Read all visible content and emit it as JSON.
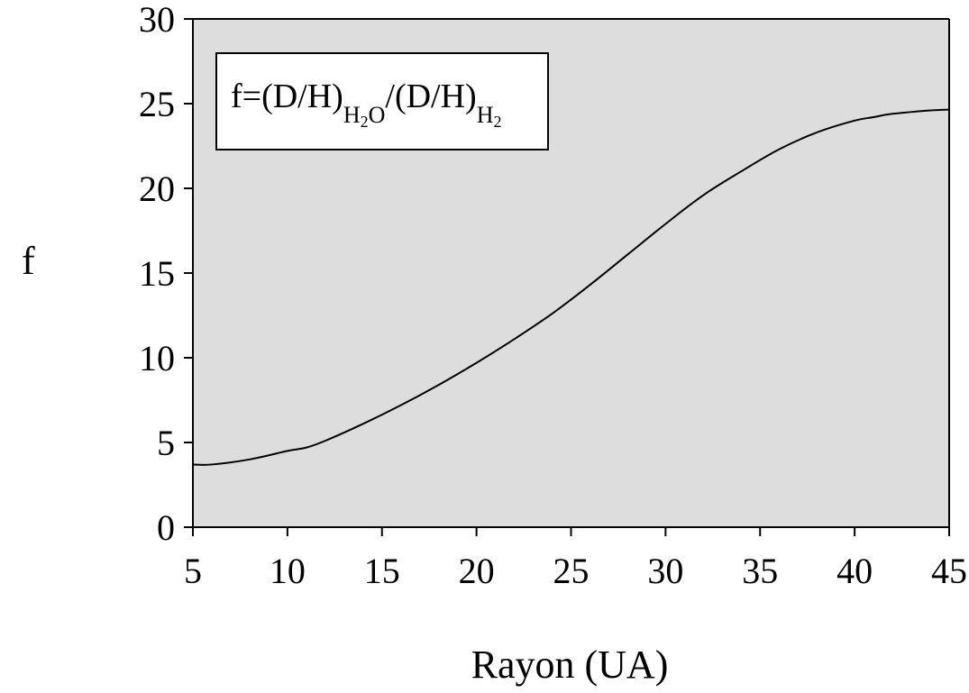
{
  "chart_data": {
    "type": "line",
    "xlabel": "Rayon (UA)",
    "ylabel": "f",
    "xlim": [
      5,
      45
    ],
    "ylim": [
      0,
      30
    ],
    "xticks": [
      5,
      10,
      15,
      20,
      25,
      30,
      35,
      40,
      45
    ],
    "yticks": [
      0,
      5,
      10,
      15,
      20,
      25,
      30
    ],
    "grid": false,
    "legend_position": "top-left",
    "plot_background": "#dcdddc",
    "line_color": "#000000",
    "annotation": {
      "prefix": "f=(D/H)",
      "sub1": "H",
      "sub1_index": "2",
      "sub1_tail": "O",
      "middle": "/(D/H)",
      "sub2": "H",
      "sub2_index": "2"
    },
    "series": [
      {
        "x": [
          5,
          6,
          8,
          10,
          11,
          12,
          14,
          16,
          18,
          20,
          22,
          24,
          26,
          28,
          30,
          32,
          34,
          36,
          38,
          40,
          41,
          42,
          44,
          45
        ],
        "y": [
          3.7,
          3.7,
          4.0,
          4.5,
          4.7,
          5.1,
          6.1,
          7.2,
          8.4,
          9.7,
          11.1,
          12.6,
          14.3,
          16.1,
          17.9,
          19.6,
          21.0,
          22.3,
          23.3,
          24.0,
          24.2,
          24.4,
          24.6,
          24.65
        ]
      }
    ]
  }
}
